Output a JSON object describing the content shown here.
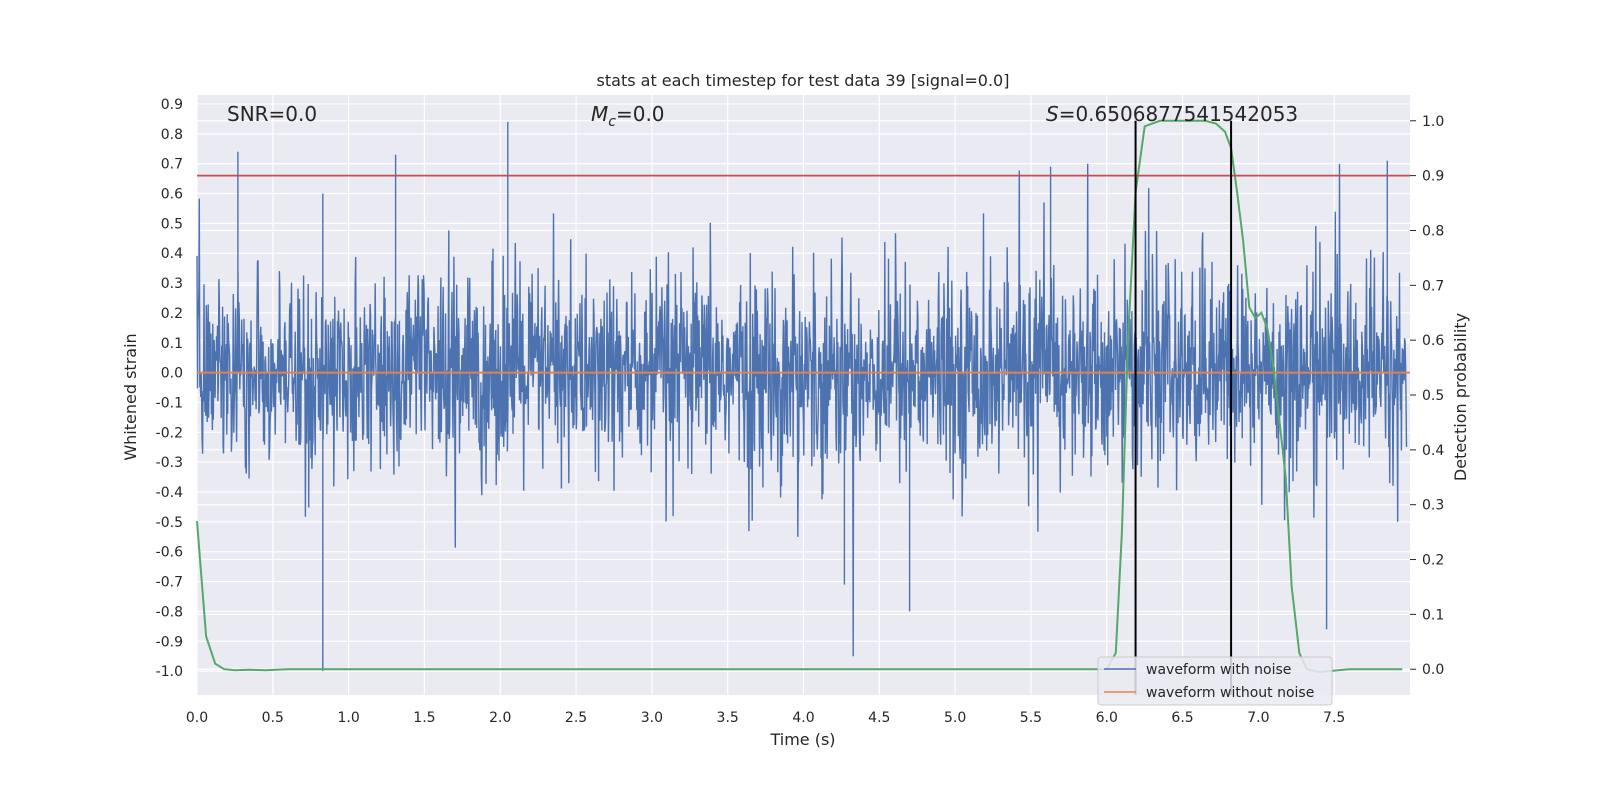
{
  "chart_data": {
    "type": "line",
    "title": "stats at each timestep for test data 39 [signal=0.0]",
    "xlabel": "Time (s)",
    "ylabel_left": "Whitened strain",
    "ylabel_right": "Detection probability",
    "xlim": [
      0.0,
      8.0
    ],
    "ylim_left": [
      -1.08,
      0.93
    ],
    "ylim_right": [
      -0.047,
      1.047
    ],
    "x_ticks": [
      "0.0",
      "0.5",
      "1.0",
      "1.5",
      "2.0",
      "2.5",
      "3.0",
      "3.5",
      "4.0",
      "4.5",
      "5.0",
      "5.5",
      "6.0",
      "6.5",
      "7.0",
      "7.5"
    ],
    "y_ticks_left": [
      "0.9",
      "0.8",
      "0.7",
      "0.6",
      "0.5",
      "0.4",
      "0.3",
      "0.2",
      "0.1",
      "0.0",
      "-0.1",
      "-0.2",
      "-0.3",
      "-0.4",
      "-0.5",
      "-0.6",
      "-0.7",
      "-0.8",
      "-0.9",
      "-1.0"
    ],
    "y_ticks_right": [
      "1.0",
      "0.9",
      "0.8",
      "0.7",
      "0.6",
      "0.5",
      "0.4",
      "0.3",
      "0.2",
      "0.1",
      "0.0"
    ],
    "annotations": {
      "snr": "SNR=0.0",
      "mc_symbol": "M",
      "mc_sub": "c",
      "mc_value": "=0.0",
      "s_symbol": "S",
      "s_value": "=0.6506877541542053"
    },
    "threshold_probability": 0.9,
    "vertical_markers": [
      6.19,
      6.82
    ],
    "grid": true,
    "legend_position": "lower-right",
    "series": [
      {
        "name": "waveform with noise",
        "color": "#4c72b0",
        "axis": "left",
        "description": "whitened noise strain, dense oscillation roughly within ±0.3 with spikes up to 0.84 and down to -1.0",
        "peaks": [
          {
            "x": 0.27,
            "y": 0.74
          },
          {
            "x": 0.83,
            "y": 0.6
          },
          {
            "x": 0.83,
            "y": -1.0
          },
          {
            "x": 1.31,
            "y": 0.73
          },
          {
            "x": 2.05,
            "y": 0.84
          },
          {
            "x": 4.27,
            "y": -0.71
          },
          {
            "x": 4.7,
            "y": -0.8
          },
          {
            "x": 5.63,
            "y": 0.69
          },
          {
            "x": 7.45,
            "y": -0.86
          },
          {
            "x": 7.85,
            "y": 0.71
          }
        ]
      },
      {
        "name": "waveform without noise",
        "color": "#dd8452",
        "axis": "left",
        "x": [
          0.0,
          8.0
        ],
        "y": [
          0.0,
          0.0
        ]
      },
      {
        "name": "detection probability",
        "color": "#55a868",
        "axis": "right",
        "x": [
          0.0,
          0.06,
          0.12,
          0.18,
          0.25,
          0.35,
          0.45,
          0.6,
          0.8,
          1.5,
          3.0,
          4.5,
          5.5,
          6.0,
          6.06,
          6.1,
          6.14,
          6.19,
          6.25,
          6.35,
          6.5,
          6.65,
          6.72,
          6.78,
          6.82,
          6.86,
          6.9,
          6.94,
          6.98,
          7.02,
          7.06,
          7.1,
          7.14,
          7.18,
          7.22,
          7.27,
          7.32,
          7.4,
          7.6,
          7.95
        ],
        "y": [
          0.27,
          0.06,
          0.01,
          0.0,
          -0.002,
          -0.001,
          -0.002,
          0.0,
          0.0,
          0.0,
          0.0,
          0.0,
          0.0,
          0.0,
          0.03,
          0.25,
          0.6,
          0.87,
          0.99,
          1.0,
          1.0,
          1.0,
          0.995,
          0.98,
          0.95,
          0.87,
          0.78,
          0.66,
          0.64,
          0.65,
          0.62,
          0.55,
          0.45,
          0.35,
          0.15,
          0.03,
          0.0,
          -0.005,
          0.0,
          0.0
        ]
      }
    ]
  }
}
